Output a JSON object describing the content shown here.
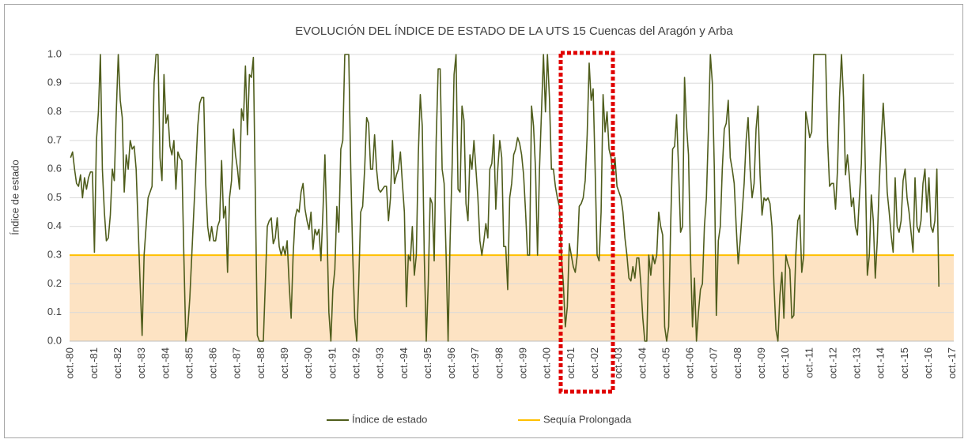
{
  "chart_data": {
    "type": "line",
    "title": "EVOLUCIÓN DEL ÍNDICE DE ESTADO DE LA UTS 15 Cuencas del Aragón y Arba",
    "y_label": "Índice de estado",
    "ylim": [
      0,
      1
    ],
    "yticks": [
      {
        "value": 0,
        "label": "0.0"
      },
      0.1,
      0.2,
      0.3,
      0.4,
      0.5,
      0.6,
      0.7,
      0.8,
      0.9,
      {
        "value": 1,
        "label": "1.0"
      }
    ],
    "grid": true,
    "legend": "bottom",
    "categories": [
      "oct.-80",
      null,
      null,
      null,
      null,
      null,
      null,
      null,
      null,
      null,
      null,
      null,
      "oct.-81",
      null,
      null,
      null,
      null,
      null,
      null,
      null,
      null,
      null,
      null,
      null,
      "oct.-82",
      null,
      null,
      null,
      null,
      null,
      null,
      null,
      null,
      null,
      null,
      null,
      "oct.-83",
      null,
      null,
      null,
      null,
      null,
      null,
      null,
      null,
      null,
      null,
      null,
      "oct.-84",
      null,
      null,
      null,
      null,
      null,
      null,
      null,
      null,
      null,
      null,
      null,
      "oct.-85",
      null,
      null,
      null,
      null,
      null,
      null,
      null,
      null,
      null,
      null,
      null,
      "oct.-86",
      null,
      null,
      null,
      null,
      null,
      null,
      null,
      null,
      null,
      null,
      null,
      "oct.-87",
      null,
      null,
      null,
      null,
      null,
      null,
      null,
      null,
      null,
      null,
      null,
      "oct.-88",
      null,
      null,
      null,
      null,
      null,
      null,
      null,
      null,
      null,
      null,
      null,
      "oct.-89",
      null,
      null,
      null,
      null,
      null,
      null,
      null,
      null,
      null,
      null,
      null,
      "oct.-90",
      null,
      null,
      null,
      null,
      null,
      null,
      null,
      null,
      null,
      null,
      null,
      "oct.-91",
      null,
      null,
      null,
      null,
      null,
      null,
      null,
      null,
      null,
      null,
      null,
      "oct.-92",
      null,
      null,
      null,
      null,
      null,
      null,
      null,
      null,
      null,
      null,
      null,
      "oct.-93",
      null,
      null,
      null,
      null,
      null,
      null,
      null,
      null,
      null,
      null,
      null,
      "oct.-94",
      null,
      null,
      null,
      null,
      null,
      null,
      null,
      null,
      null,
      null,
      null,
      "oct.-95",
      null,
      null,
      null,
      null,
      null,
      null,
      null,
      null,
      null,
      null,
      null,
      "oct.-96",
      null,
      null,
      null,
      null,
      null,
      null,
      null,
      null,
      null,
      null,
      null,
      "oct.-97",
      null,
      null,
      null,
      null,
      null,
      null,
      null,
      null,
      null,
      null,
      null,
      "oct.-98",
      null,
      null,
      null,
      null,
      null,
      null,
      null,
      null,
      null,
      null,
      null,
      "oct.-99",
      null,
      null,
      null,
      null,
      null,
      null,
      null,
      null,
      null,
      null,
      null,
      "oct.-00",
      null,
      null,
      null,
      null,
      null,
      null,
      null,
      null,
      null,
      null,
      null,
      "oct.-01",
      null,
      null,
      null,
      null,
      null,
      null,
      null,
      null,
      null,
      null,
      null,
      "oct.-02",
      null,
      null,
      null,
      null,
      null,
      null,
      null,
      null,
      null,
      null,
      null,
      "oct.-03",
      null,
      null,
      null,
      null,
      null,
      null,
      null,
      null,
      null,
      null,
      null,
      "oct.-04",
      null,
      null,
      null,
      null,
      null,
      null,
      null,
      null,
      null,
      null,
      null,
      "oct.-05",
      null,
      null,
      null,
      null,
      null,
      null,
      null,
      null,
      null,
      null,
      null,
      "oct.-06",
      null,
      null,
      null,
      null,
      null,
      null,
      null,
      null,
      null,
      null,
      null,
      "oct.-07",
      null,
      null,
      null,
      null,
      null,
      null,
      null,
      null,
      null,
      null,
      null,
      "oct.-08",
      null,
      null,
      null,
      null,
      null,
      null,
      null,
      null,
      null,
      null,
      null,
      "oct.-09",
      null,
      null,
      null,
      null,
      null,
      null,
      null,
      null,
      null,
      null,
      null,
      "oct.-10",
      null,
      null,
      null,
      null,
      null,
      null,
      null,
      null,
      null,
      null,
      null,
      "oct.-11",
      null,
      null,
      null,
      null,
      null,
      null,
      null,
      null,
      null,
      null,
      null,
      "oct.-12",
      null,
      null,
      null,
      null,
      null,
      null,
      null,
      null,
      null,
      null,
      null,
      "oct.-13",
      null,
      null,
      null,
      null,
      null,
      null,
      null,
      null,
      null,
      null,
      null,
      "oct.-14",
      null,
      null,
      null,
      null,
      null,
      null,
      null,
      null,
      null,
      null,
      null,
      "oct.-15",
      null,
      null,
      null,
      null,
      null,
      null,
      null,
      null,
      null,
      null,
      null,
      "oct.-16",
      null,
      null,
      null,
      null,
      null,
      null,
      null,
      null,
      null,
      null,
      null,
      "oct.-17"
    ],
    "series": [
      {
        "name": "Índice de estado",
        "color": "#4f5d1c",
        "values": [
          0.64,
          0.66,
          0.6,
          0.55,
          0.54,
          0.58,
          0.5,
          0.57,
          0.53,
          0.57,
          0.59,
          0.59,
          0.31,
          0.7,
          0.8,
          1.0,
          0.6,
          0.45,
          0.35,
          0.36,
          0.44,
          0.6,
          0.56,
          0.8,
          1.0,
          0.84,
          0.78,
          0.52,
          0.65,
          0.6,
          0.7,
          0.67,
          0.68,
          0.6,
          0.4,
          0.2,
          0.02,
          0.3,
          0.4,
          0.5,
          0.52,
          0.54,
          0.9,
          1.0,
          1.0,
          0.64,
          0.56,
          0.93,
          0.76,
          0.79,
          0.68,
          0.65,
          0.7,
          0.53,
          0.66,
          0.64,
          0.63,
          0.3,
          0,
          0.05,
          0.15,
          0.3,
          0.45,
          0.6,
          0.75,
          0.83,
          0.85,
          0.85,
          0.55,
          0.4,
          0.35,
          0.4,
          0.35,
          0.35,
          0.4,
          0.42,
          0.63,
          0.43,
          0.47,
          0.24,
          0.5,
          0.56,
          0.74,
          0.65,
          0.6,
          0.53,
          0.81,
          0.77,
          0.96,
          0.72,
          0.93,
          0.92,
          0.99,
          0.5,
          0.02,
          0,
          0,
          0,
          0.2,
          0.4,
          0.42,
          0.43,
          0.34,
          0.36,
          0.43,
          0.33,
          0.3,
          0.33,
          0.3,
          0.35,
          0.2,
          0.08,
          0.3,
          0.43,
          0.46,
          0.45,
          0.52,
          0.55,
          0.46,
          0.42,
          0.39,
          0.45,
          0.32,
          0.39,
          0.37,
          0.39,
          0.28,
          0.45,
          0.65,
          0.4,
          0.1,
          0,
          0.18,
          0.25,
          0.47,
          0.38,
          0.67,
          0.7,
          1.0,
          1.0,
          1.0,
          0.6,
          0.3,
          0.08,
          0,
          0.2,
          0.45,
          0.47,
          0.6,
          0.78,
          0.76,
          0.6,
          0.6,
          0.72,
          0.6,
          0.53,
          0.52,
          0.53,
          0.54,
          0.54,
          0.42,
          0.5,
          0.7,
          0.55,
          0.58,
          0.6,
          0.66,
          0.55,
          0.45,
          0.12,
          0.3,
          0.28,
          0.4,
          0.23,
          0.3,
          0.65,
          0.86,
          0.75,
          0.3,
          0,
          0.2,
          0.5,
          0.48,
          0.28,
          0.7,
          0.95,
          0.95,
          0.6,
          0.55,
          0.3,
          0,
          0.35,
          0.6,
          0.93,
          1.0,
          0.53,
          0.52,
          0.82,
          0.77,
          0.48,
          0.42,
          0.65,
          0.6,
          0.7,
          0.6,
          0.5,
          0.35,
          0.3,
          0.35,
          0.41,
          0.36,
          0.6,
          0.62,
          0.72,
          0.46,
          0.6,
          0.7,
          0.64,
          0.33,
          0.33,
          0.18,
          0.5,
          0.55,
          0.65,
          0.67,
          0.71,
          0.69,
          0.65,
          0.58,
          0.45,
          0.3,
          0.3,
          0.82,
          0.75,
          0.6,
          0.3,
          0.6,
          0.8,
          1.0,
          0.8,
          1.0,
          0.85,
          0.6,
          0.6,
          0.54,
          0.5,
          0.47,
          0.3,
          0.2,
          0.05,
          0.12,
          0.34,
          0.3,
          0.26,
          0.24,
          0.3,
          0.47,
          0.48,
          0.5,
          0.56,
          0.72,
          0.97,
          0.84,
          0.88,
          0.6,
          0.3,
          0.28,
          0.45,
          0.86,
          0.73,
          0.8,
          0.67,
          0.64,
          0.58,
          0.64,
          0.54,
          0.52,
          0.5,
          0.45,
          0.36,
          0.3,
          0.22,
          0.21,
          0.26,
          0.22,
          0.29,
          0.29,
          0.2,
          0.08,
          0,
          0,
          0.3,
          0.23,
          0.3,
          0.27,
          0.3,
          0.45,
          0.4,
          0.37,
          0.05,
          0,
          0.05,
          0.4,
          0.67,
          0.68,
          0.79,
          0.6,
          0.38,
          0.4,
          0.92,
          0.75,
          0.65,
          0.3,
          0.05,
          0.22,
          0,
          0.1,
          0.18,
          0.2,
          0.4,
          0.5,
          0.73,
          1.0,
          0.9,
          0.6,
          0.09,
          0.35,
          0.4,
          0.6,
          0.74,
          0.76,
          0.84,
          0.64,
          0.6,
          0.55,
          0.4,
          0.27,
          0.35,
          0.45,
          0.55,
          0.7,
          0.78,
          0.6,
          0.5,
          0.55,
          0.74,
          0.82,
          0.58,
          0.44,
          0.5,
          0.49,
          0.5,
          0.48,
          0.4,
          0.2,
          0.04,
          0,
          0.16,
          0.24,
          0.08,
          0.3,
          0.27,
          0.25,
          0.08,
          0.09,
          0.3,
          0.42,
          0.44,
          0.24,
          0.3,
          0.8,
          0.76,
          0.71,
          0.73,
          1.0,
          1.0,
          1.0,
          1.0,
          1.0,
          1.0,
          1.0,
          0.7,
          0.54,
          0.55,
          0.55,
          0.46,
          0.6,
          0.85,
          1.0,
          0.85,
          0.58,
          0.65,
          0.57,
          0.47,
          0.5,
          0.4,
          0.37,
          0.5,
          0.62,
          0.93,
          0.6,
          0.23,
          0.3,
          0.51,
          0.42,
          0.22,
          0.35,
          0.55,
          0.7,
          0.83,
          0.7,
          0.52,
          0.45,
          0.37,
          0.31,
          0.57,
          0.4,
          0.38,
          0.42,
          0.56,
          0.6,
          0.5,
          0.45,
          0.38,
          0.31,
          0.57,
          0.4,
          0.38,
          0.42,
          0.55,
          0.6,
          0.45,
          0.57,
          0.4,
          0.38,
          0.42,
          0.6,
          0.19,
          null,
          null,
          null,
          null,
          null,
          null,
          null
        ]
      },
      {
        "name": "Sequía Prolongada",
        "color": "#ffc000",
        "fill": "#fde3c3",
        "value": 0.3
      }
    ]
  }
}
